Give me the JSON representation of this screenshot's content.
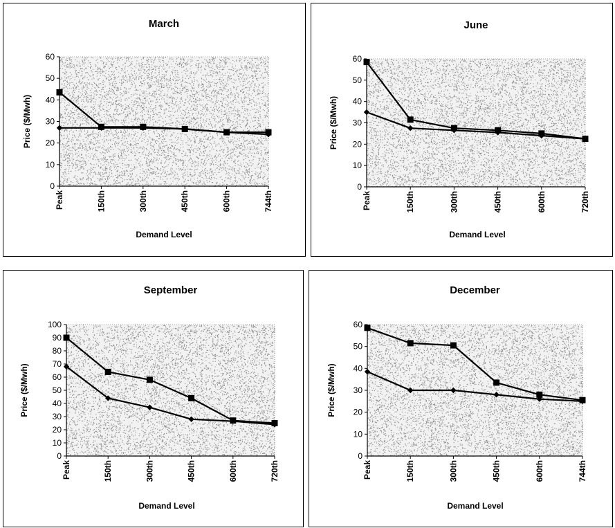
{
  "chart_data": [
    {
      "type": "line",
      "title": "March",
      "xlabel": "Demand Level",
      "ylabel": "Price ($/Mwh)",
      "categories": [
        "Peak",
        "150th",
        "300th",
        "450th",
        "600th",
        "744th"
      ],
      "ylim": [
        0,
        60
      ],
      "yticks": [
        0,
        10,
        20,
        30,
        40,
        50,
        60
      ],
      "grid": false,
      "plot_background": "stippled gray",
      "series": [
        {
          "marker": "diamond",
          "values": [
            27,
            27,
            27,
            26.5,
            25,
            24
          ]
        },
        {
          "marker": "square",
          "values": [
            43.5,
            27.5,
            27.5,
            26.5,
            25,
            25
          ]
        }
      ]
    },
    {
      "type": "line",
      "title": "June",
      "xlabel": "Demand Level",
      "ylabel": "Price ($/Mwh)",
      "categories": [
        "Peak",
        "150th",
        "300th",
        "450th",
        "600th",
        "720th"
      ],
      "ylim": [
        0,
        60
      ],
      "yticks": [
        0,
        10,
        20,
        30,
        40,
        50,
        60
      ],
      "grid": false,
      "plot_background": "stippled gray",
      "series": [
        {
          "marker": "diamond",
          "values": [
            35,
            27.5,
            26.5,
            25.5,
            24,
            22.5
          ]
        },
        {
          "marker": "square",
          "values": [
            58.5,
            31.5,
            27.5,
            26.5,
            25,
            22.5
          ]
        }
      ]
    },
    {
      "type": "line",
      "title": "September",
      "xlabel": "Demand Level",
      "ylabel": "Price ($/Mwh)",
      "categories": [
        "Peak",
        "150th",
        "300th",
        "450th",
        "600th",
        "720th"
      ],
      "ylim": [
        0,
        100
      ],
      "yticks": [
        0,
        10,
        20,
        30,
        40,
        50,
        60,
        70,
        80,
        90,
        100
      ],
      "grid": false,
      "plot_background": "stippled gray",
      "series": [
        {
          "marker": "diamond",
          "values": [
            68,
            44,
            37,
            28,
            26.5,
            24
          ]
        },
        {
          "marker": "square",
          "values": [
            90,
            64,
            58,
            44,
            27,
            25
          ]
        }
      ]
    },
    {
      "type": "line",
      "title": "December",
      "xlabel": "Demand Level",
      "ylabel": "Price ($/Mwh)",
      "categories": [
        "Peak",
        "150th",
        "300th",
        "450th",
        "600th",
        "744th"
      ],
      "ylim": [
        0,
        60
      ],
      "yticks": [
        0,
        10,
        20,
        30,
        40,
        50,
        60
      ],
      "grid": false,
      "plot_background": "stippled gray",
      "series": [
        {
          "marker": "diamond",
          "values": [
            38.5,
            30,
            30,
            28,
            26,
            25
          ]
        },
        {
          "marker": "square",
          "values": [
            58.5,
            51.5,
            50.5,
            33.5,
            28,
            25.5
          ]
        }
      ]
    }
  ]
}
